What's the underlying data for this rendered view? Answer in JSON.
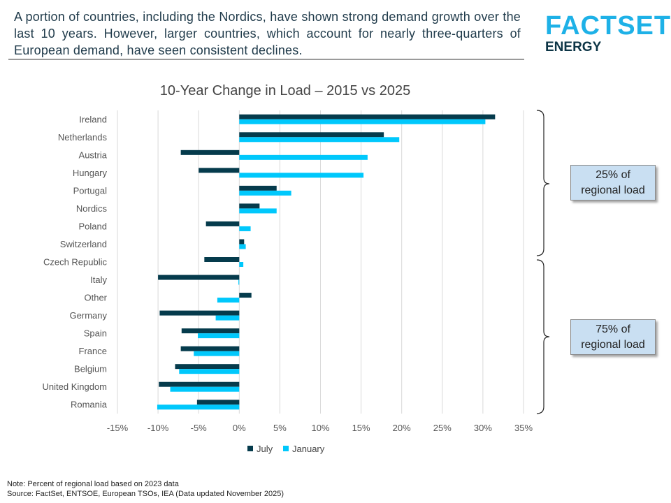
{
  "headline": "A portion of countries, including the Nordics, have shown strong demand growth over the last 10 years. However, larger countries, which account for nearly three-quarters of European demand, have seen consistent declines.",
  "logo": {
    "brand": "FACTSET",
    "sub": "ENERGY"
  },
  "colors": {
    "july": "#053b4c",
    "january": "#00c8fc",
    "brand": "#1eb1e7",
    "box_fill": "#c9dff2"
  },
  "chart_data": {
    "type": "bar",
    "orientation": "horizontal",
    "title": "10-Year Change in Load – 2015 vs 2025",
    "categories": [
      "Ireland",
      "Netherlands",
      "Austria",
      "Hungary",
      "Portugal",
      "Nordics",
      "Poland",
      "Switzerland",
      "Czech Republic",
      "Italy",
      "Other",
      "Germany",
      "Spain",
      "France",
      "Belgium",
      "United Kingdom",
      "Romania"
    ],
    "series": [
      {
        "name": "July",
        "values": [
          31.5,
          17.8,
          -7.2,
          -5.0,
          4.6,
          2.5,
          -4.1,
          0.6,
          -4.3,
          -10.0,
          1.5,
          -9.8,
          -7.1,
          -7.2,
          -7.9,
          -9.9,
          -5.2
        ]
      },
      {
        "name": "January",
        "values": [
          30.3,
          19.7,
          15.8,
          15.3,
          6.4,
          4.6,
          1.4,
          0.8,
          0.5,
          -0.1,
          -2.7,
          -2.9,
          -5.1,
          -5.6,
          -7.4,
          -8.5,
          -10.1
        ]
      }
    ],
    "xlim": [
      -15,
      35
    ],
    "xticks": [
      "-15%",
      "-10%",
      "-5%",
      "0%",
      "5%",
      "10%",
      "15%",
      "20%",
      "25%",
      "30%",
      "35%"
    ],
    "grid": true,
    "legend": "bottom",
    "annotations": [
      {
        "text": "25% of regional load",
        "line1": "25% of",
        "line2": "regional load"
      },
      {
        "text": "75% of regional load",
        "line1": "75% of",
        "line2": "regional load"
      }
    ]
  },
  "notes": {
    "note": "Note: Percent of regional load based on 2023 data",
    "source": "Source: FactSet, ENTSOE, European TSOs, IEA (Data updated November 2025)"
  }
}
